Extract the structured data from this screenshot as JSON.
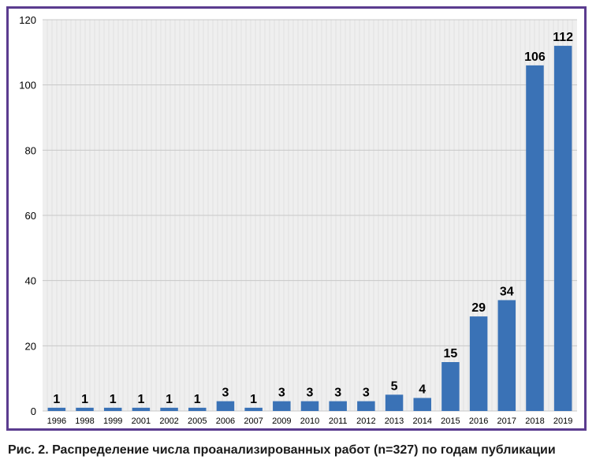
{
  "caption": "Рис. 2. Распределение числа проанализированных работ (n=327) по годам публикации",
  "colors": {
    "bar": "#3a72b6",
    "frame": "#5b3c8f",
    "plot_background": "#efefef",
    "gridline": "#d8d8d8",
    "text": "#000000"
  },
  "chart_data": {
    "type": "bar",
    "title": "",
    "xlabel": "",
    "ylabel": "",
    "categories": [
      "1996",
      "1998",
      "1999",
      "2001",
      "2002",
      "2005",
      "2006",
      "2007",
      "2009",
      "2010",
      "2011",
      "2012",
      "2013",
      "2014",
      "2015",
      "2016",
      "2017",
      "2018",
      "2019"
    ],
    "values": [
      1,
      1,
      1,
      1,
      1,
      1,
      3,
      1,
      3,
      3,
      3,
      3,
      5,
      4,
      15,
      29,
      34,
      106,
      112
    ],
    "data_labels": [
      "1",
      "1",
      "1",
      "1",
      "1",
      "1",
      "3",
      "1",
      "3",
      "3",
      "3",
      "3",
      "5",
      "4",
      "15",
      "29",
      "34",
      "106",
      "112"
    ],
    "ylim": [
      0,
      120
    ],
    "yticks": [
      0,
      20,
      40,
      60,
      80,
      100,
      120
    ],
    "grid": "on",
    "legend": "none"
  }
}
